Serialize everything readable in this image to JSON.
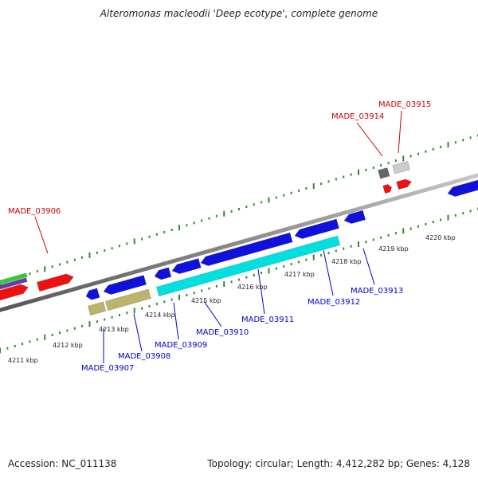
{
  "title": "Alteromonas macleodii 'Deep ecotype', complete genome",
  "footer": {
    "accession": "Accession: NC_011138",
    "stats": "Topology: circular; Length: 4,412,282 bp; Genes: 4,128"
  },
  "colors": {
    "backbone": "#8a8a8a",
    "ticks": "#2e8b2e",
    "forward_gene": "#ee1111",
    "reverse_gene": "#1111dd",
    "rna": "#00e0e0",
    "pseudo": "#bdb46b",
    "label_top": "#cc0000",
    "label_bottom": "#0000cc"
  },
  "kbp_labels": [
    "4211 kbp",
    "4212 kbp",
    "4213 kbp",
    "4214 kbp",
    "4215 kbp",
    "4216 kbp",
    "4217 kbp",
    "4218 kbp",
    "4219 kbp",
    "4220 kbp"
  ],
  "gene_labels_top": [
    "MADE_03906",
    "MADE_03914",
    "MADE_03915"
  ],
  "gene_labels_bottom": [
    "MADE_03907",
    "MADE_03908",
    "MADE_03909",
    "MADE_03910",
    "MADE_03911",
    "MADE_03912",
    "MADE_03913"
  ]
}
